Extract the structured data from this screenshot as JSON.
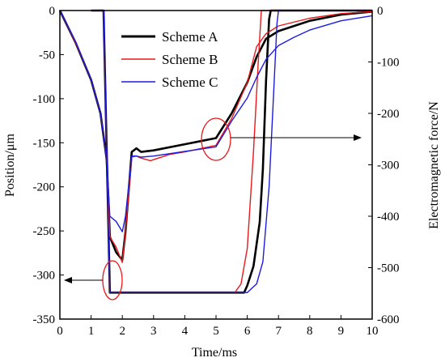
{
  "chart_data": {
    "type": "line",
    "xlabel": "Time/ms",
    "ylabel_left": "Position/μm",
    "ylabel_right": "Electromagnetic force/N",
    "xlim": [
      0,
      10
    ],
    "ylim_left": [
      -350,
      0
    ],
    "ylim_right": [
      -600,
      0
    ],
    "x_ticks": [
      "0",
      "1",
      "2",
      "3",
      "4",
      "5",
      "6",
      "7",
      "8",
      "9",
      "10"
    ],
    "y_left_ticks": [
      "0",
      "-50",
      "-100",
      "-150",
      "-200",
      "-250",
      "-300",
      "-350"
    ],
    "y_right_ticks": [
      "0",
      "-100",
      "-200",
      "-300",
      "-400",
      "-500",
      "-600"
    ],
    "grid": false,
    "legend_position": "top-center",
    "series": [
      {
        "name": "Scheme A",
        "color": "#000000",
        "axis": "left",
        "role": "position",
        "points": [
          [
            1.0,
            0
          ],
          [
            1.4,
            0
          ],
          [
            1.6,
            -320
          ],
          [
            5.9,
            -320
          ],
          [
            6.0,
            -312
          ],
          [
            6.2,
            -290
          ],
          [
            6.4,
            -240
          ],
          [
            6.5,
            -180
          ],
          [
            6.6,
            -80
          ],
          [
            6.7,
            -10
          ],
          [
            6.75,
            0
          ],
          [
            10,
            0
          ]
        ]
      },
      {
        "name": "Scheme A",
        "color": "#000000",
        "axis": "right",
        "role": "force",
        "points": [
          [
            0,
            0
          ],
          [
            0.5,
            -62
          ],
          [
            1.0,
            -135
          ],
          [
            1.3,
            -200
          ],
          [
            1.5,
            -290
          ],
          [
            1.6,
            -440
          ],
          [
            1.8,
            -470
          ],
          [
            2.0,
            -485
          ],
          [
            2.1,
            -430
          ],
          [
            2.3,
            -275
          ],
          [
            2.45,
            -268
          ],
          [
            2.6,
            -275
          ],
          [
            3.0,
            -272
          ],
          [
            4.0,
            -260
          ],
          [
            5.0,
            -248
          ],
          [
            5.5,
            -200
          ],
          [
            6.0,
            -140
          ],
          [
            6.3,
            -90
          ],
          [
            6.6,
            -55
          ],
          [
            7.0,
            -40
          ],
          [
            8.0,
            -20
          ],
          [
            9.0,
            -8
          ],
          [
            10,
            -2
          ]
        ]
      },
      {
        "name": "Scheme B",
        "color": "#e8191b",
        "axis": "left",
        "role": "position",
        "points": [
          [
            1.0,
            0
          ],
          [
            1.4,
            0
          ],
          [
            1.6,
            -320
          ],
          [
            5.6,
            -320
          ],
          [
            5.8,
            -310
          ],
          [
            6.0,
            -270
          ],
          [
            6.2,
            -160
          ],
          [
            6.35,
            -60
          ],
          [
            6.45,
            0
          ],
          [
            10,
            0
          ]
        ]
      },
      {
        "name": "Scheme B",
        "color": "#e8191b",
        "axis": "right",
        "role": "force",
        "points": [
          [
            0,
            0
          ],
          [
            0.5,
            -62
          ],
          [
            1.0,
            -135
          ],
          [
            1.3,
            -200
          ],
          [
            1.5,
            -290
          ],
          [
            1.6,
            -440
          ],
          [
            1.8,
            -460
          ],
          [
            2.0,
            -490
          ],
          [
            2.1,
            -430
          ],
          [
            2.3,
            -285
          ],
          [
            2.45,
            -283
          ],
          [
            2.6,
            -287
          ],
          [
            2.9,
            -292
          ],
          [
            3.5,
            -280
          ],
          [
            4.0,
            -275
          ],
          [
            5.0,
            -262
          ],
          [
            5.5,
            -210
          ],
          [
            6.0,
            -140
          ],
          [
            6.3,
            -70
          ],
          [
            6.6,
            -45
          ],
          [
            7.0,
            -30
          ],
          [
            8.0,
            -15
          ],
          [
            9.0,
            -6
          ],
          [
            10,
            -2
          ]
        ]
      },
      {
        "name": "Scheme C",
        "color": "#1c1ce0",
        "axis": "left",
        "role": "position",
        "points": [
          [
            1.0,
            0
          ],
          [
            1.4,
            0
          ],
          [
            1.6,
            -320
          ],
          [
            6.0,
            -320
          ],
          [
            6.3,
            -310
          ],
          [
            6.5,
            -285
          ],
          [
            6.7,
            -200
          ],
          [
            6.85,
            -90
          ],
          [
            6.95,
            -15
          ],
          [
            7.0,
            0
          ],
          [
            10,
            0
          ]
        ]
      },
      {
        "name": "Scheme C",
        "color": "#1c1ce0",
        "axis": "right",
        "role": "force",
        "points": [
          [
            0,
            0
          ],
          [
            0.5,
            -60
          ],
          [
            1.0,
            -135
          ],
          [
            1.3,
            -200
          ],
          [
            1.5,
            -290
          ],
          [
            1.6,
            -400
          ],
          [
            1.8,
            -410
          ],
          [
            2.0,
            -430
          ],
          [
            2.1,
            -400
          ],
          [
            2.3,
            -283
          ],
          [
            2.45,
            -283
          ],
          [
            2.6,
            -285
          ],
          [
            3.0,
            -283
          ],
          [
            4.0,
            -274
          ],
          [
            5.0,
            -265
          ],
          [
            5.5,
            -215
          ],
          [
            6.0,
            -170
          ],
          [
            6.3,
            -130
          ],
          [
            6.6,
            -95
          ],
          [
            7.0,
            -68
          ],
          [
            7.5,
            -52
          ],
          [
            8.0,
            -38
          ],
          [
            9.0,
            -20
          ],
          [
            10,
            -10
          ]
        ]
      }
    ]
  }
}
